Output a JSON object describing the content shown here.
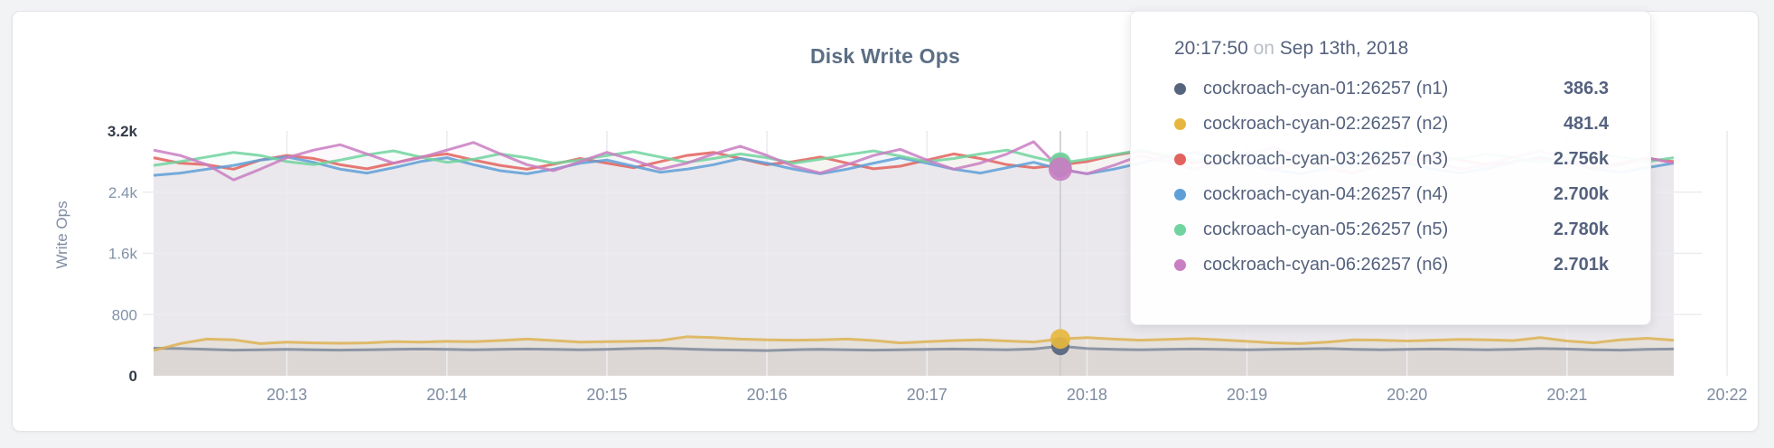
{
  "panel": {
    "title": "Disk Write Ops"
  },
  "axes": {
    "y_label": "Write Ops",
    "y_ticks": [
      {
        "label": "0",
        "value": 0,
        "emph": true,
        "grid": false
      },
      {
        "label": "800",
        "value": 800,
        "emph": false,
        "grid": true
      },
      {
        "label": "1.6k",
        "value": 1600,
        "emph": false,
        "grid": true
      },
      {
        "label": "2.4k",
        "value": 2400,
        "emph": false,
        "grid": true
      },
      {
        "label": "3.2k",
        "value": 3200,
        "emph": true,
        "grid": false
      }
    ],
    "x_ticks": [
      {
        "label": "20:13",
        "index": 5
      },
      {
        "label": "20:14",
        "index": 11
      },
      {
        "label": "20:15",
        "index": 17
      },
      {
        "label": "20:16",
        "index": 23
      },
      {
        "label": "20:17",
        "index": 29
      },
      {
        "label": "20:18",
        "index": 35
      },
      {
        "label": "20:19",
        "index": 41
      },
      {
        "label": "20:20",
        "index": 47
      },
      {
        "label": "20:21",
        "index": 53
      },
      {
        "label": "20:22",
        "index": 59
      }
    ]
  },
  "tooltip": {
    "time": "20:17:50",
    "conjunction": "on",
    "date": "Sep 13th, 2018",
    "rows": [
      {
        "host": "cockroach-cyan-01:26257 (n1)",
        "value": "386.3"
      },
      {
        "host": "cockroach-cyan-02:26257 (n2)",
        "value": "481.4"
      },
      {
        "host": "cockroach-cyan-03:26257 (n3)",
        "value": "2.756k"
      },
      {
        "host": "cockroach-cyan-04:26257 (n4)",
        "value": "2.700k"
      },
      {
        "host": "cockroach-cyan-05:26257 (n5)",
        "value": "2.780k"
      },
      {
        "host": "cockroach-cyan-06:26257 (n6)",
        "value": "2.701k"
      }
    ]
  },
  "chart_data": {
    "type": "line",
    "title": "Disk Write Ops",
    "xlabel": "",
    "ylabel": "Write Ops",
    "ylim": [
      0,
      3200
    ],
    "grid": true,
    "legend_position": "tooltip-only",
    "x_start": "20:12:10",
    "x_interval_seconds": 10,
    "point_count": 58,
    "x_tick_labels": [
      "20:13",
      "20:14",
      "20:15",
      "20:16",
      "20:17",
      "20:18",
      "20:19",
      "20:20",
      "20:21",
      "20:22"
    ],
    "hover": {
      "index": 34,
      "time": "20:17:50",
      "date": "Sep 13th, 2018"
    },
    "series": [
      {
        "name": "cockroach-cyan-01:26257 (n1)",
        "color": "#7d889b",
        "dot_color": "#56647e",
        "hover_value": 386.3,
        "values": [
          360,
          355,
          345,
          335,
          340,
          345,
          340,
          335,
          340,
          345,
          350,
          345,
          340,
          345,
          350,
          345,
          340,
          345,
          355,
          360,
          350,
          340,
          335,
          330,
          340,
          345,
          340,
          335,
          340,
          345,
          350,
          345,
          340,
          350,
          386.3,
          355,
          345,
          340,
          345,
          350,
          345,
          340,
          345,
          350,
          355,
          345,
          340,
          345,
          350,
          345,
          340,
          345,
          355,
          350,
          340,
          335,
          345,
          350
        ]
      },
      {
        "name": "cockroach-cyan-02:26257 (n2)",
        "color": "#ddb152",
        "dot_color": "#e6b73f",
        "hover_value": 481.4,
        "values": [
          330,
          420,
          480,
          470,
          420,
          440,
          430,
          425,
          430,
          445,
          440,
          450,
          445,
          460,
          480,
          460,
          440,
          445,
          450,
          460,
          510,
          500,
          480,
          470,
          465,
          470,
          480,
          460,
          430,
          445,
          460,
          470,
          455,
          440,
          481.4,
          500,
          480,
          465,
          475,
          485,
          470,
          450,
          430,
          420,
          440,
          470,
          465,
          455,
          465,
          475,
          470,
          460,
          500,
          455,
          430,
          470,
          490,
          465
        ]
      },
      {
        "name": "cockroach-cyan-03:26257 (n3)",
        "color": "#e2625d",
        "dot_color": "#e2625d",
        "hover_value": 2756,
        "values": [
          2850,
          2780,
          2760,
          2700,
          2820,
          2880,
          2840,
          2760,
          2705,
          2780,
          2860,
          2900,
          2820,
          2750,
          2700,
          2765,
          2840,
          2780,
          2720,
          2800,
          2880,
          2920,
          2840,
          2760,
          2800,
          2860,
          2780,
          2705,
          2740,
          2820,
          2900,
          2840,
          2760,
          2720,
          2756,
          2800,
          2880,
          2940,
          2860,
          2780,
          2820,
          2760,
          2700,
          2780,
          2860,
          2800,
          2740,
          2800,
          2880,
          2820,
          2760,
          2800,
          2840,
          2780,
          2720,
          2780,
          2840,
          2800
        ]
      },
      {
        "name": "cockroach-cyan-04:26257 (n4)",
        "color": "#5f9fd7",
        "dot_color": "#5f9fd7",
        "hover_value": 2700,
        "values": [
          2620,
          2650,
          2700,
          2750,
          2820,
          2860,
          2790,
          2700,
          2650,
          2720,
          2800,
          2850,
          2760,
          2680,
          2640,
          2700,
          2780,
          2820,
          2740,
          2660,
          2700,
          2760,
          2840,
          2780,
          2700,
          2640,
          2700,
          2780,
          2850,
          2780,
          2700,
          2650,
          2720,
          2790,
          2700,
          2640,
          2700,
          2780,
          2860,
          2920,
          2840,
          2760,
          2690,
          2640,
          2710,
          2790,
          2850,
          2780,
          2700,
          2650,
          2710,
          2790,
          2860,
          2790,
          2710,
          2660,
          2720,
          2780
        ]
      },
      {
        "name": "cockroach-cyan-05:26257 (n5)",
        "color": "#70d49e",
        "dot_color": "#70d49e",
        "hover_value": 2780,
        "values": [
          2750,
          2800,
          2860,
          2920,
          2880,
          2800,
          2760,
          2820,
          2890,
          2940,
          2860,
          2790,
          2830,
          2900,
          2850,
          2780,
          2820,
          2880,
          2930,
          2860,
          2790,
          2840,
          2900,
          2850,
          2780,
          2830,
          2890,
          2940,
          2870,
          2800,
          2840,
          2900,
          2950,
          2860,
          2780,
          2830,
          2890,
          2950,
          2880,
          2810,
          2860,
          2920,
          2850,
          2780,
          2830,
          2890,
          2940,
          2870,
          2800,
          2840,
          2900,
          2850,
          2790,
          2840,
          2900,
          2860,
          2800,
          2850
        ]
      },
      {
        "name": "cockroach-cyan-06:26257 (n6)",
        "color": "#c97ec2",
        "dot_color": "#c97ec2",
        "hover_value": 2701,
        "values": [
          2950,
          2880,
          2760,
          2560,
          2700,
          2850,
          2950,
          3020,
          2900,
          2780,
          2850,
          2950,
          3050,
          2900,
          2760,
          2680,
          2800,
          2920,
          2820,
          2700,
          2780,
          2900,
          3000,
          2880,
          2740,
          2650,
          2760,
          2880,
          2960,
          2820,
          2700,
          2780,
          2900,
          3060,
          2701,
          2640,
          2750,
          2880,
          2800,
          2700,
          2780,
          2900,
          2980,
          2850,
          2720,
          2650,
          2760,
          2880,
          2800,
          2700,
          2760,
          2860,
          2940,
          2820,
          2700,
          2760,
          2850,
          2780
        ]
      }
    ]
  }
}
